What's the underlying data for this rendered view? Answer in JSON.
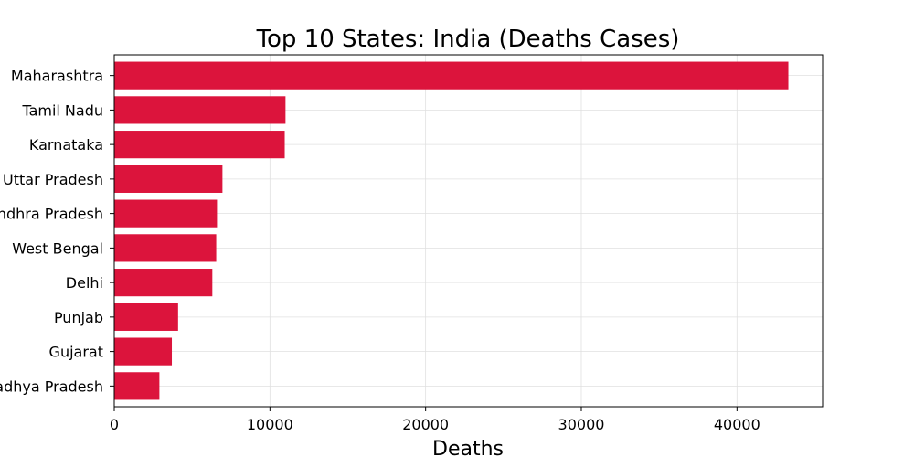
{
  "chart_data": {
    "type": "bar",
    "orientation": "horizontal",
    "title": "Top 10 States: India (Deaths Cases)",
    "xlabel": "Deaths",
    "ylabel": "",
    "categories": [
      "Maharashtra",
      "Tamil Nadu",
      "Karnataka",
      "Uttar Pradesh",
      "Andhra Pradesh",
      "West Bengal",
      "Delhi",
      "Punjab",
      "Gujarat",
      "Madhya Pradesh"
    ],
    "values": [
      43300,
      11000,
      10950,
      6950,
      6600,
      6550,
      6300,
      4100,
      3700,
      2900
    ],
    "xlim": [
      0,
      45500
    ],
    "xticks": [
      0,
      10000,
      20000,
      30000,
      40000
    ],
    "grid": true,
    "bar_color": "#dc143c"
  }
}
